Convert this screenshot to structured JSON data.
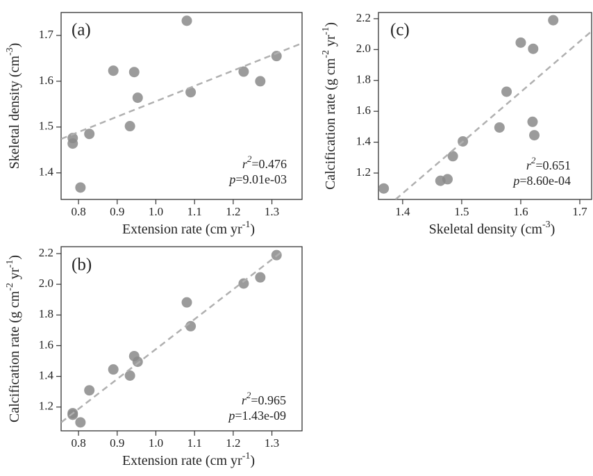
{
  "chart_data": [
    {
      "type": "scatter",
      "panel_label": "(a)",
      "xlabel": [
        {
          "text": "Extension  rate (cm yr"
        },
        {
          "text": "-1",
          "sup": true
        },
        {
          "text": ")"
        }
      ],
      "ylabel": [
        {
          "text": "Skeletal density (cm"
        },
        {
          "text": "-3",
          "sup": true
        },
        {
          "text": ")"
        }
      ],
      "x": [
        0.785,
        0.785,
        0.805,
        0.828,
        0.89,
        0.933,
        0.944,
        0.953,
        1.08,
        1.09,
        1.227,
        1.27,
        1.312
      ],
      "y": [
        1.476,
        1.464,
        1.368,
        1.485,
        1.623,
        1.502,
        1.62,
        1.564,
        1.732,
        1.576,
        1.621,
        1.6,
        1.655
      ],
      "color": "#8a8a8a",
      "fit": {
        "x": [
          0.755,
          1.378
        ],
        "y": [
          1.474,
          1.683
        ],
        "color": "#b0b0b0"
      },
      "stats": [
        {
          "symbol": "r",
          "sup": "2",
          "text": "=0.476"
        },
        {
          "symbol": "p",
          "text": "=9.01e-03"
        }
      ],
      "xlim": [
        0.755,
        1.378
      ],
      "ylim": [
        1.342,
        1.75
      ],
      "xticks": [
        0.8,
        0.9,
        {
          "value": 1,
          "label": "1.0"
        },
        1.1,
        1.2,
        1.3
      ],
      "yticks": [
        1.4,
        1.5,
        1.6,
        1.7
      ]
    },
    {
      "type": "scatter",
      "panel_label": "(b)",
      "xlabel": [
        {
          "text": "Extension  rate (cm yr"
        },
        {
          "text": "-1",
          "sup": true
        },
        {
          "text": ")"
        }
      ],
      "ylabel": [
        {
          "text": "Calcification rate (g cm"
        },
        {
          "text": "-2",
          "sup": true
        },
        {
          "text": " yr"
        },
        {
          "text": "-1",
          "sup": true
        },
        {
          "text": ")"
        }
      ],
      "x": [
        0.785,
        0.785,
        0.805,
        0.828,
        0.89,
        0.933,
        0.944,
        0.953,
        1.08,
        1.09,
        1.227,
        1.27,
        1.312
      ],
      "y": [
        1.16,
        1.15,
        1.1,
        1.309,
        1.445,
        1.405,
        1.532,
        1.495,
        1.882,
        1.727,
        2.005,
        2.045,
        2.19
      ],
      "color": "#8a8a8a",
      "fit": {
        "x": [
          0.755,
          1.33
        ],
        "y": [
          1.1,
          2.22
        ],
        "color": "#b0b0b0"
      },
      "stats": [
        {
          "symbol": "r",
          "sup": "2",
          "text": "=0.965"
        },
        {
          "symbol": "p",
          "text": "=1.43e-09"
        }
      ],
      "xlim": [
        0.755,
        1.378
      ],
      "ylim": [
        1.045,
        2.245
      ],
      "xticks": [
        0.8,
        0.9,
        {
          "value": 1,
          "label": "1.0"
        },
        1.1,
        1.2,
        1.3
      ],
      "yticks": [
        1.2,
        1.4,
        1.6,
        1.8,
        {
          "value": 2,
          "label": "2.0"
        },
        2.2
      ]
    },
    {
      "type": "scatter",
      "panel_label": "(c)",
      "xlabel": [
        {
          "text": "Skeletal density (cm"
        },
        {
          "text": "-3",
          "sup": true
        },
        {
          "text": ")"
        }
      ],
      "ylabel": [
        {
          "text": "Calcification rate (g cm"
        },
        {
          "text": "-2",
          "sup": true
        },
        {
          "text": " yr"
        },
        {
          "text": "-1",
          "sup": true
        },
        {
          "text": ")"
        }
      ],
      "x": [
        1.476,
        1.464,
        1.368,
        1.485,
        1.623,
        1.502,
        1.62,
        1.564,
        1.732,
        1.576,
        1.621,
        1.6,
        1.655
      ],
      "y": [
        1.16,
        1.15,
        1.1,
        1.309,
        1.445,
        1.405,
        1.532,
        1.495,
        1.882,
        1.727,
        2.005,
        2.045,
        2.19
      ],
      "color": "#8a8a8a",
      "fit": {
        "x": [
          1.388,
          1.72
        ],
        "y": [
          1.029,
          2.119
        ],
        "color": "#b0b0b0"
      },
      "stats": [
        {
          "symbol": "r",
          "sup": "2",
          "text": "=0.651"
        },
        {
          "symbol": "p",
          "text": "=8.60e-04"
        }
      ],
      "xlim": [
        1.359,
        1.72
      ],
      "ylim": [
        1.029,
        2.24
      ],
      "xticks": [
        1.4,
        1.5,
        1.6,
        1.7
      ],
      "yticks": [
        1.2,
        1.4,
        1.6,
        1.8,
        {
          "value": 2,
          "label": "2.0"
        },
        2.2
      ]
    }
  ]
}
